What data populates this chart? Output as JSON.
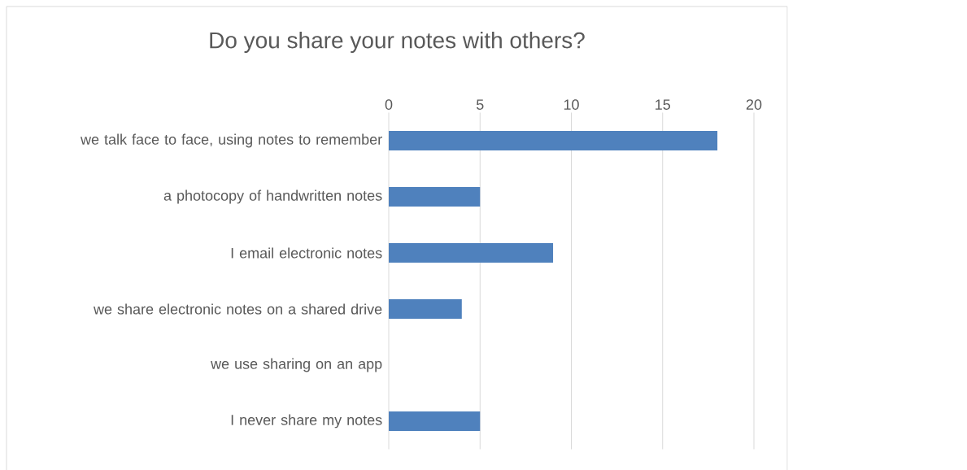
{
  "chart_data": {
    "type": "bar",
    "orientation": "horizontal",
    "title": "Do you share your notes with others?",
    "categories": [
      "we talk face to face, using notes to remember",
      "a photocopy of handwritten notes",
      "I email electronic notes",
      "we share electronic notes on a shared drive",
      "we use sharing on an app",
      "I never share my notes"
    ],
    "values": [
      18,
      5,
      9,
      4,
      0,
      5
    ],
    "color": "#4f81bd",
    "xlim": [
      0,
      20
    ],
    "xticks": [
      0,
      5,
      10,
      15,
      20
    ],
    "grid": "x"
  }
}
